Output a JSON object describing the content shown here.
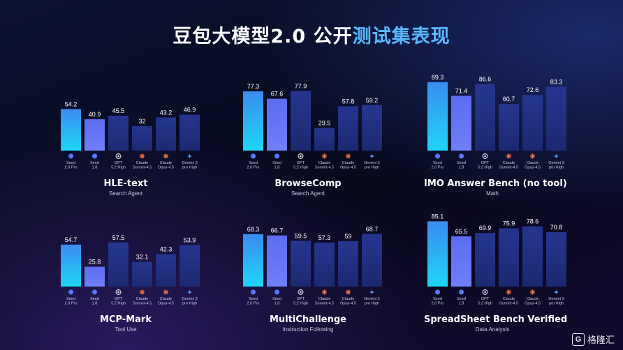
{
  "title": {
    "main": "豆包大模型2.0 公开",
    "accent": "测试集表现"
  },
  "watermark": "格隆汇",
  "models": [
    {
      "line1": "Seed",
      "line2": "2.0 Pro",
      "icon": "seed-icon"
    },
    {
      "line1": "Seed",
      "line2": "1.8",
      "icon": "seed-icon"
    },
    {
      "line1": "GPT",
      "line2": "5.2 High",
      "icon": "openai-icon"
    },
    {
      "line1": "Claude",
      "line2": "Sonnet-4.5",
      "icon": "claude-icon"
    },
    {
      "line1": "Claude",
      "line2": "Opus-4.5",
      "icon": "claude-icon"
    },
    {
      "line1": "Gemini 3",
      "line2": "pro High",
      "icon": "gemini-icon"
    }
  ],
  "colors": {
    "highlight_top": "#3a8cf0",
    "highlight_bottom": "#1fd6f5",
    "seed18_top": "#5b6cf0",
    "seed18_bottom": "#6f7ff8",
    "other_top": "#25358f",
    "other_bottom": "#1c2a72"
  },
  "chart_data": [
    {
      "type": "bar",
      "title": "HLE-text",
      "subtitle": "Search Agent",
      "categories": [
        "Seed 2.0 Pro",
        "Seed 1.8",
        "GPT 5.2 High",
        "Claude Sonnet-4.5",
        "Claude Opus-4.5",
        "Gemini 3 pro High"
      ],
      "values": [
        54.2,
        40.9,
        45.5,
        32,
        43.2,
        46.9
      ],
      "labels": [
        "54.2",
        "40.9",
        "45.5",
        "32",
        "43.2",
        "46.9"
      ]
    },
    {
      "type": "bar",
      "title": "BrowseComp",
      "subtitle": "Search Agent",
      "categories": [
        "Seed 2.0 Pro",
        "Seed 1.8",
        "GPT 5.2 High",
        "Claude Sonnet-4.5",
        "Claude Opus-4.5",
        "Gemini 3 pro High"
      ],
      "values": [
        77.3,
        67.6,
        77.9,
        29.5,
        57.8,
        59.2
      ],
      "labels": [
        "77.3",
        "67.6",
        "77.9",
        "29.5",
        "57.8",
        "59.2"
      ]
    },
    {
      "type": "bar",
      "title": "IMO Answer Bench (no tool)",
      "subtitle": "Math",
      "categories": [
        "Seed 2.0 Pro",
        "Seed 1.8",
        "GPT 5.2 High",
        "Claude Sonnet-4.5",
        "Claude Opus-4.5",
        "Gemini 3 pro High"
      ],
      "values": [
        89.3,
        71.4,
        86.6,
        60.7,
        72.6,
        83.3
      ],
      "labels": [
        "89.3",
        "71.4",
        "86.6",
        "60.7",
        "72.6",
        "83.3"
      ]
    },
    {
      "type": "bar",
      "title": "MCP-Mark",
      "subtitle": "Tool Use",
      "categories": [
        "Seed 2.0 Pro",
        "Seed 1.8",
        "GPT 5.2 High",
        "Claude Sonnet-4.5",
        "Claude Opus-4.5",
        "Gemini 3 pro High"
      ],
      "values": [
        54.7,
        25.8,
        57.5,
        32.1,
        42.3,
        53.9
      ],
      "labels": [
        "54.7",
        "25.8",
        "57.5",
        "32.1",
        "42.3",
        "53.9"
      ]
    },
    {
      "type": "bar",
      "title": "MultiChallenge",
      "subtitle": "Instruction Following",
      "categories": [
        "Seed 2.0 Pro",
        "Seed 1.8",
        "GPT 5.2 High",
        "Claude Sonnet-4.5",
        "Claude Opus-4.5",
        "Gemini 3 pro High"
      ],
      "values": [
        68.3,
        66.7,
        59.5,
        57.3,
        59,
        68.7
      ],
      "labels": [
        "68.3",
        "66.7",
        "59.5",
        "57.3",
        "59",
        "68.7"
      ]
    },
    {
      "type": "bar",
      "title": "SpreadSheet Bench Verified",
      "subtitle": "Data Analysis",
      "categories": [
        "Seed 2.0 Pro",
        "Seed 1.8",
        "GPT 5.2 High",
        "Claude Sonnet-4.5",
        "Claude Opus-4.5",
        "Gemini 3 pro High"
      ],
      "values": [
        85.1,
        65.5,
        69.9,
        75.9,
        78.6,
        70.8
      ],
      "labels": [
        "85.1",
        "65.5",
        "69.9",
        "75.9",
        "78.6",
        "70.8"
      ]
    }
  ]
}
